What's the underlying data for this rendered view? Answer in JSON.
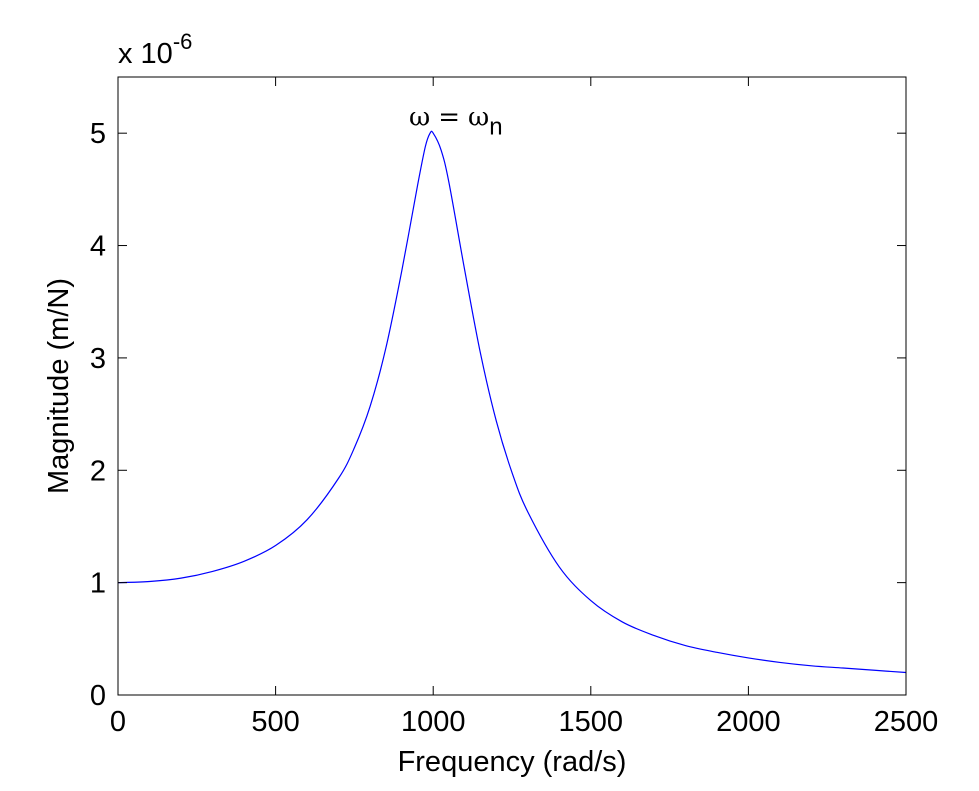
{
  "chart_data": {
    "type": "line",
    "title": "",
    "xlabel": "Frequency (rad/s)",
    "ylabel": "Magnitude (m/N)",
    "xlim": [
      0,
      2500
    ],
    "ylim": [
      0,
      5.5
    ],
    "xticks": [
      0,
      500,
      1000,
      1500,
      2000,
      2500
    ],
    "xtick_labels": [
      "0",
      "500",
      "1000",
      "1500",
      "2000",
      "2500"
    ],
    "yticks": [
      0,
      1,
      2,
      3,
      4,
      5
    ],
    "ytick_labels": [
      "0",
      "1",
      "2",
      "3",
      "4",
      "5"
    ],
    "y_exponent": {
      "base_text": "x 10",
      "exponent_text": "-6"
    },
    "grid": false,
    "legend": "none",
    "line_color": "#0000ff",
    "annotation": {
      "omega": "ω",
      "equals": "=",
      "omega_n": "ω",
      "subscript": "n",
      "x": 1120,
      "y": 5.05
    },
    "series": [
      {
        "x": [
          0,
          100,
          200,
          300,
          400,
          500,
          600,
          700,
          750,
          800,
          850,
          900,
          950,
          975,
          990,
          1000,
          1025,
          1050,
          1100,
          1150,
          1200,
          1250,
          1300,
          1400,
          1500,
          1600,
          1700,
          1800,
          1900,
          2000,
          2100,
          2200,
          2300,
          2400,
          2500
        ],
        "values": [
          1.0,
          1.01,
          1.04,
          1.1,
          1.19,
          1.33,
          1.56,
          1.93,
          2.2,
          2.57,
          3.09,
          3.77,
          4.53,
          4.88,
          5.0,
          5.0,
          4.85,
          4.56,
          3.78,
          3.04,
          2.44,
          1.98,
          1.63,
          1.14,
          0.84,
          0.65,
          0.53,
          0.44,
          0.38,
          0.33,
          0.29,
          0.26,
          0.24,
          0.22,
          0.2
        ]
      }
    ]
  }
}
